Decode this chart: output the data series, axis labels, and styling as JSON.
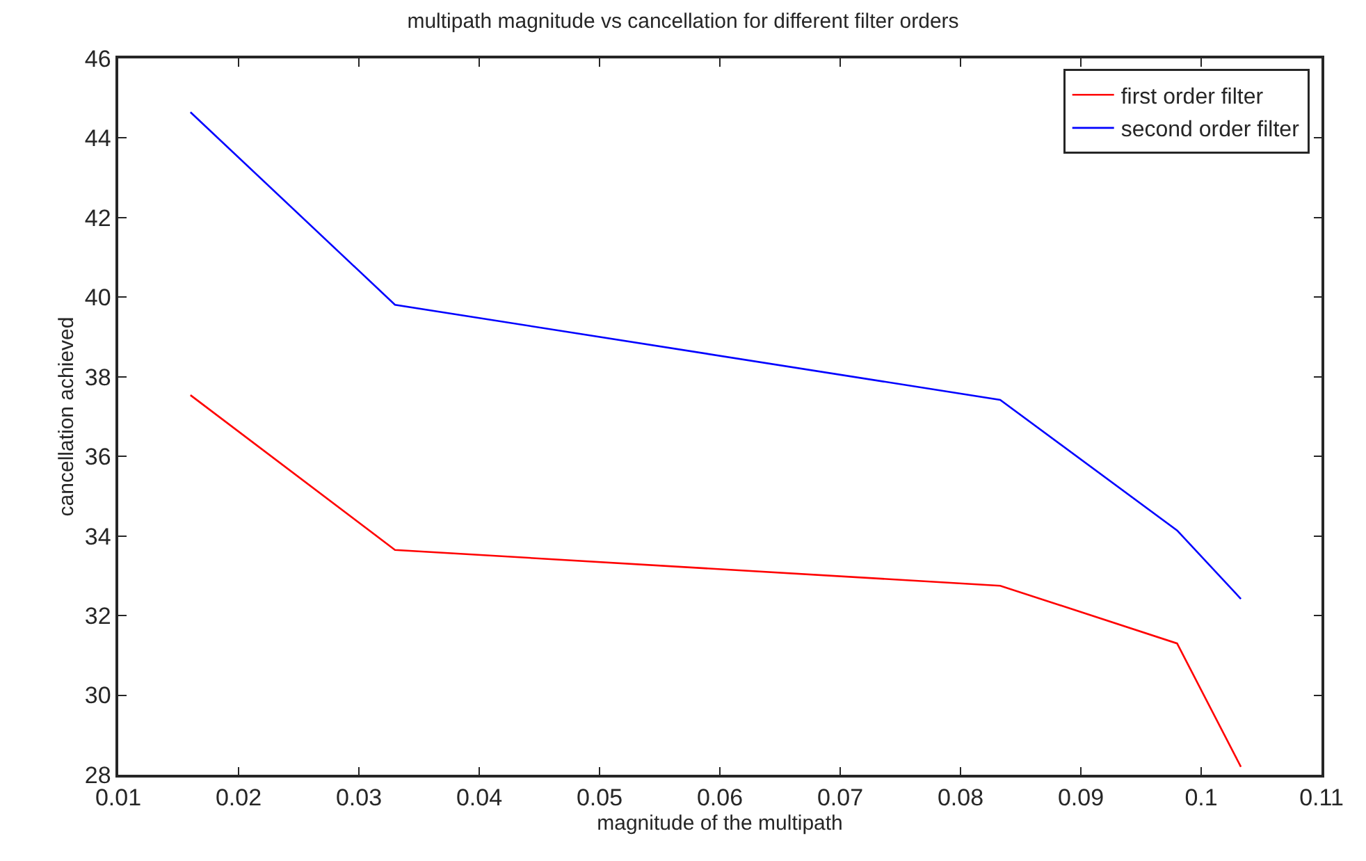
{
  "chart_data": {
    "type": "line",
    "title": "multipath magnitude vs cancellation for different filter orders",
    "xlabel": "magnitude of the multipath",
    "ylabel": "cancellation achieved",
    "x": [
      0.016,
      0.033,
      0.0833,
      0.098,
      0.1033
    ],
    "series": [
      {
        "name": "first order filter",
        "color": "#ff0000",
        "values": [
          37.54,
          33.65,
          32.75,
          31.3,
          28.2
        ]
      },
      {
        "name": "second order filter",
        "color": "#0000ff",
        "values": [
          44.65,
          39.81,
          37.42,
          34.14,
          32.42
        ]
      }
    ],
    "xlim": [
      0.01,
      0.11
    ],
    "xticks": [
      0.01,
      0.02,
      0.03,
      0.04,
      0.05,
      0.06,
      0.07,
      0.08,
      0.09,
      0.1,
      0.11
    ],
    "ylim": [
      28,
      46
    ],
    "yticks": [
      28,
      30,
      32,
      34,
      36,
      38,
      40,
      42,
      44,
      46
    ],
    "legend": "top right",
    "marker": "none",
    "line_style": "solid"
  }
}
